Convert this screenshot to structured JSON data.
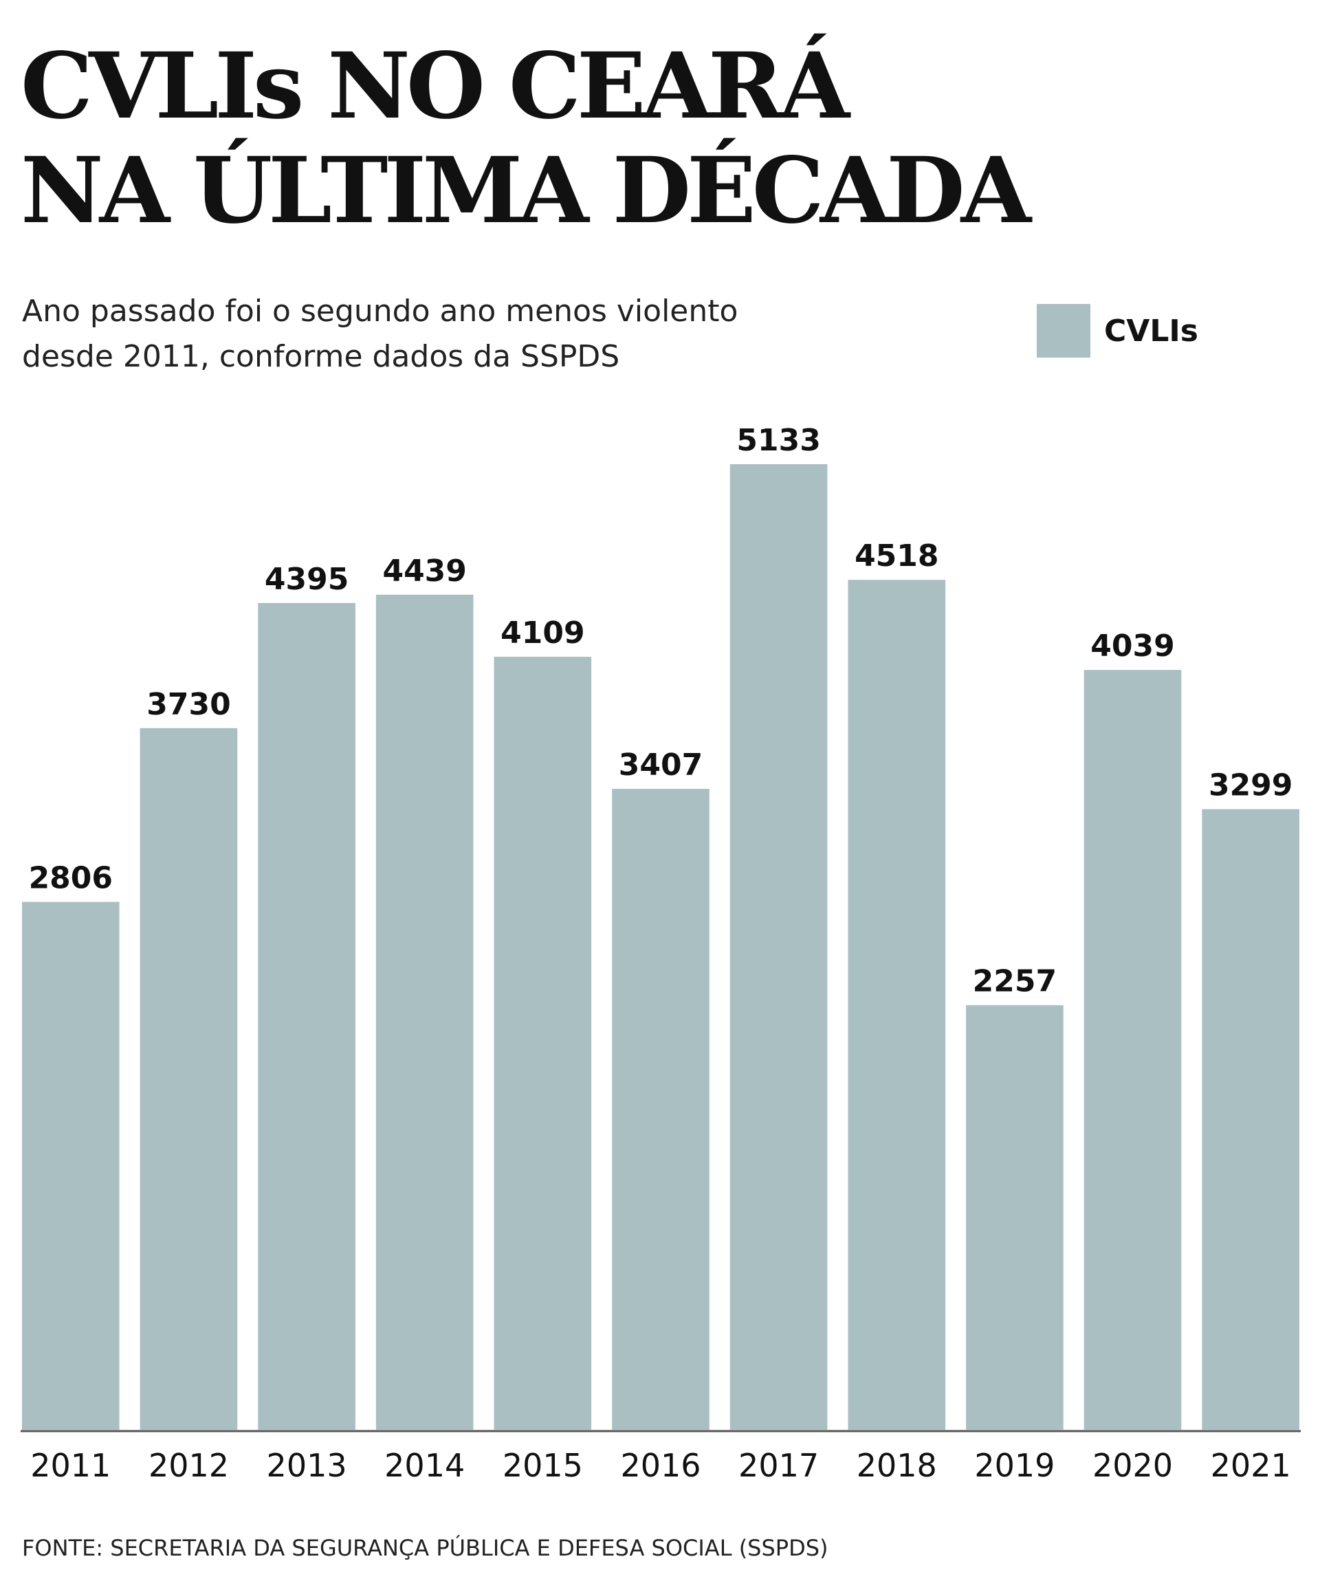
{
  "header": {
    "title_line1": "CVLIs NO CEARÁ",
    "title_line2": "NA ÚLTIMA DÉCADA",
    "subtitle_line1": "Ano passado foi o segundo ano menos violento",
    "subtitle_line2": "desde 2011, conforme dados da SSPDS"
  },
  "legend": {
    "label": "CVLIs",
    "color": "#a9bfc1"
  },
  "footer": {
    "source": "FONTE: SECRETARIA DA SEGURANÇA PÚBLICA E DEFESA SOCIAL (SSPDS)"
  },
  "chart_data": {
    "type": "bar",
    "title": "CVLIs NO CEARÁ NA ÚLTIMA DÉCADA",
    "subtitle": "Ano passado foi o segundo ano menos violento desde 2011, conforme dados da SSPDS",
    "xlabel": "",
    "ylabel": "",
    "categories": [
      "2011",
      "2012",
      "2013",
      "2014",
      "2015",
      "2016",
      "2017",
      "2018",
      "2019",
      "2020",
      "2021"
    ],
    "series": [
      {
        "name": "CVLIs",
        "color": "#a9bfc1",
        "values": [
          2806,
          3730,
          4395,
          4439,
          4109,
          3407,
          5133,
          4518,
          2257,
          4039,
          3299
        ]
      }
    ],
    "ylim": [
      0,
      5133
    ],
    "data_labels": true,
    "grid": false,
    "legend_position": "top-right"
  }
}
